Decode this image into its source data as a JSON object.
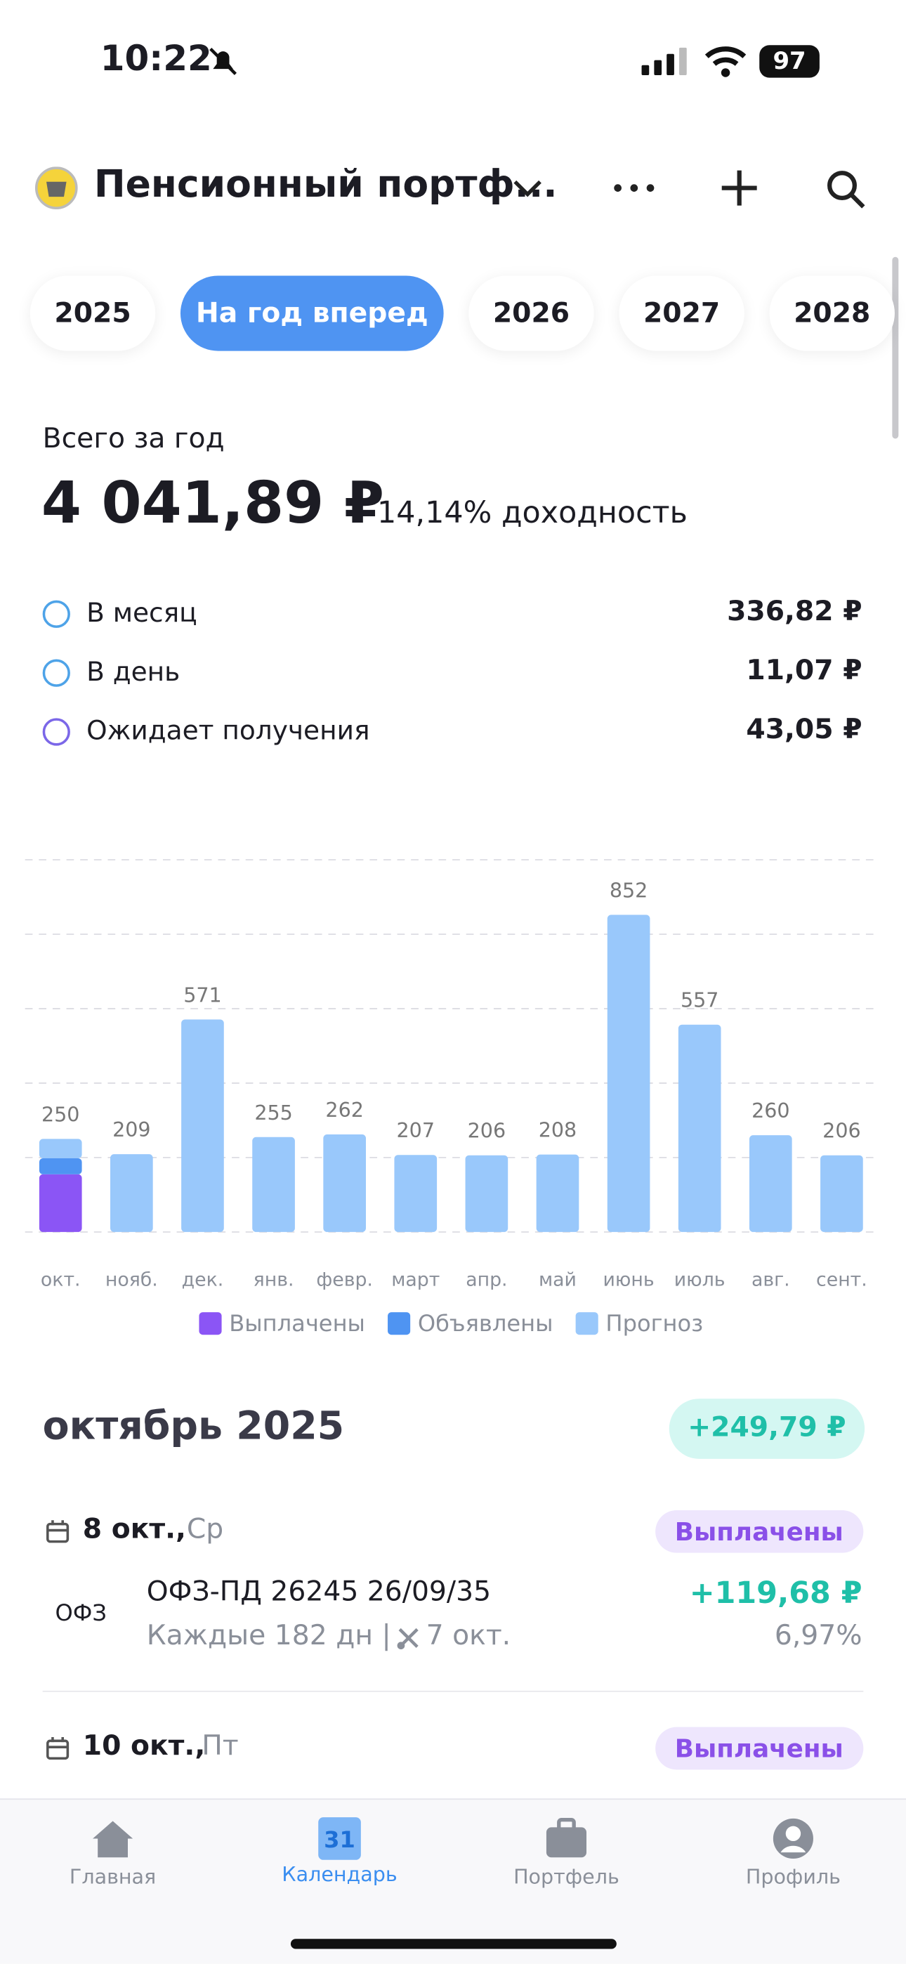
{
  "status_bar": {
    "time": "10:22",
    "battery": "97"
  },
  "header": {
    "title": "Пенсионный портф..."
  },
  "tabs": [
    "2025",
    "На год вперед",
    "2026",
    "2027",
    "2028"
  ],
  "summary": {
    "label": "Всего за год",
    "total": "4 041,89 ₽",
    "yield": "14,14% доходность",
    "rows": [
      {
        "label": "В месяц",
        "value": "336,82 ₽"
      },
      {
        "label": "В день",
        "value": "11,07 ₽"
      },
      {
        "label": "Ожидает получения",
        "value": "43,05 ₽"
      }
    ]
  },
  "chart_data": {
    "type": "bar",
    "stacked": true,
    "categories": [
      "окт.",
      "нояб.",
      "дек.",
      "янв.",
      "февр.",
      "март",
      "апр.",
      "май",
      "июнь",
      "июль",
      "авг.",
      "сент."
    ],
    "series": [
      {
        "name": "Выплачены",
        "color": "#8b55f5",
        "values": [
          155,
          0,
          0,
          0,
          0,
          0,
          0,
          0,
          0,
          0,
          0,
          0
        ]
      },
      {
        "name": "Объявлены",
        "color": "#4f94f2",
        "values": [
          43,
          0,
          0,
          0,
          0,
          0,
          0,
          0,
          0,
          0,
          0,
          0
        ]
      },
      {
        "name": "Прогноз",
        "color": "#99c8fb",
        "values": [
          52,
          209,
          571,
          255,
          262,
          207,
          206,
          208,
          852,
          557,
          260,
          206
        ]
      }
    ],
    "totals": [
      250,
      209,
      571,
      255,
      262,
      207,
      206,
      208,
      852,
      557,
      260,
      206
    ],
    "ylim": [
      0,
      1000
    ],
    "yticks": [
      0,
      200,
      400,
      600,
      800,
      1000
    ],
    "grid": true
  },
  "month": {
    "title": "октябрь 2025",
    "amount": "+249,79 ₽"
  },
  "payments": [
    {
      "date": "8 окт.,",
      "weekday": "Ср",
      "status": "Выплачены",
      "ticker": "ОФЗ",
      "name": "ОФЗ-ПД 26245 26/09/35",
      "period": "Каждые 182 дн |",
      "cut": "7 окт.",
      "amount": "+119,68 ₽",
      "yield": "6,97%"
    },
    {
      "date": "10 окт.,",
      "weekday": "Пт",
      "status": "Выплачены"
    }
  ],
  "nav": [
    {
      "label": "Главная"
    },
    {
      "label": "Календарь",
      "icon_text": "31"
    },
    {
      "label": "Портфель"
    },
    {
      "label": "Профиль"
    }
  ]
}
